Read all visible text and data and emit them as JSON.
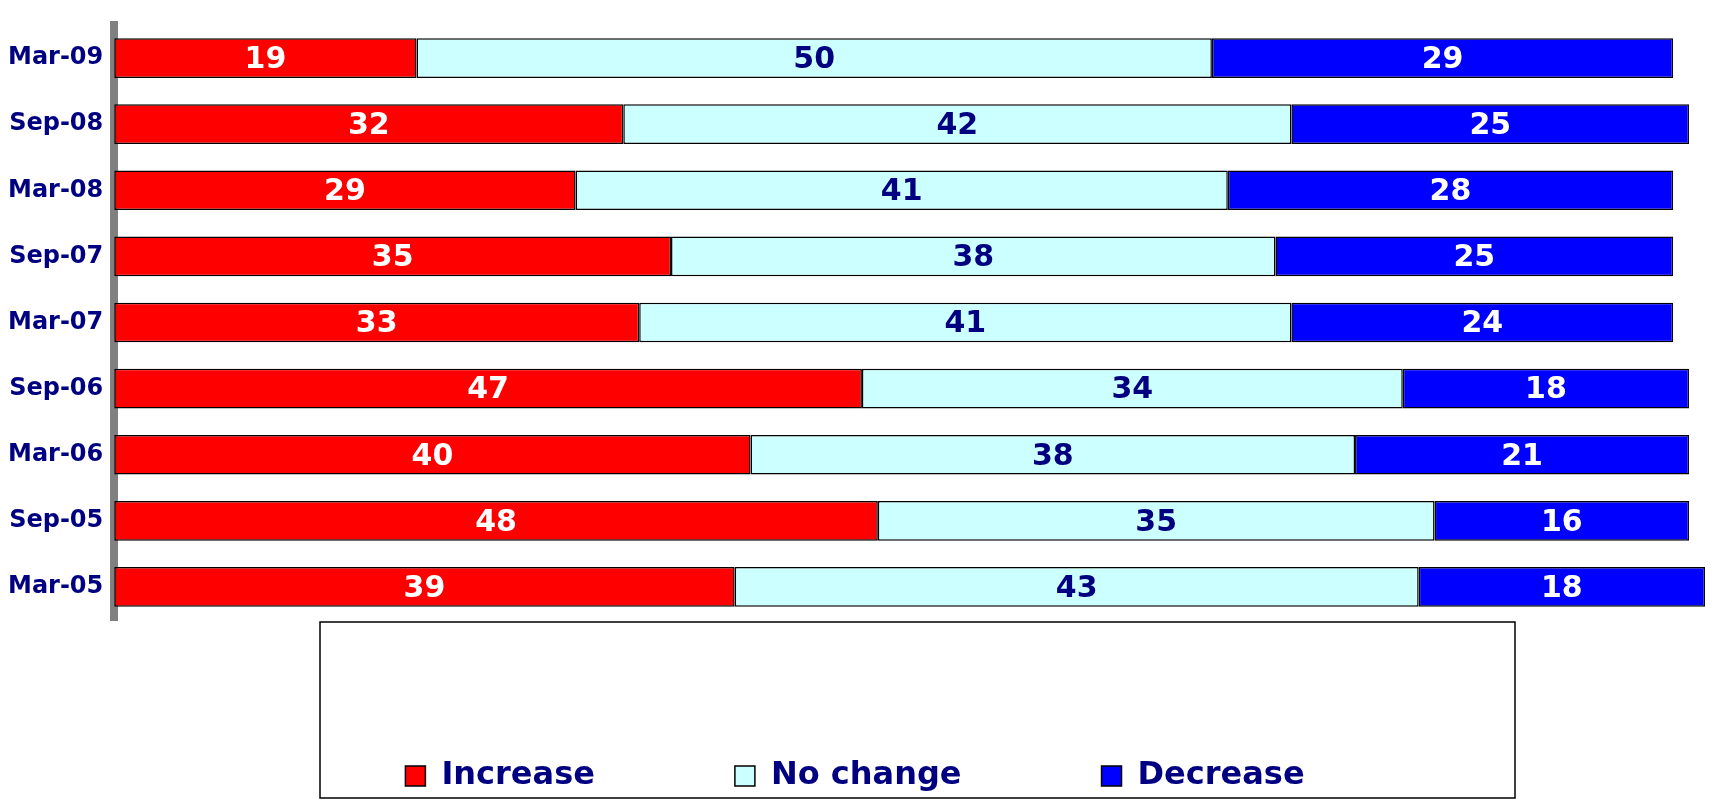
{
  "chart_data": {
    "type": "bar",
    "orientation": "horizontal",
    "stacked": true,
    "data_labels": true,
    "legend": "bottom",
    "grid": false,
    "categories": [
      "Mar-09",
      "Sep-08",
      "Mar-08",
      "Sep-07",
      "Mar-07",
      "Sep-06",
      "Mar-06",
      "Sep-05",
      "Mar-05"
    ],
    "series": [
      {
        "name": "Increase",
        "color": "#ff0000",
        "values": [
          19,
          32,
          29,
          35,
          33,
          47,
          40,
          48,
          39
        ]
      },
      {
        "name": "No change",
        "color": "#ccffff",
        "values": [
          50,
          42,
          41,
          38,
          41,
          34,
          38,
          35,
          43
        ]
      },
      {
        "name": "Decrease",
        "color": "#0000ff",
        "values": [
          29,
          25,
          28,
          25,
          24,
          18,
          21,
          16,
          18
        ]
      }
    ]
  }
}
